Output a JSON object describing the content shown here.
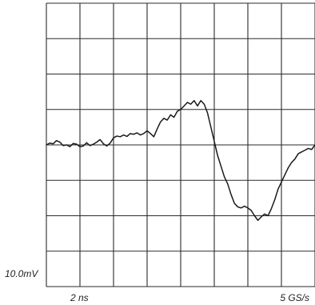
{
  "chart_data": {
    "type": "line",
    "title": "",
    "xlabel": "",
    "ylabel": "",
    "grid": true,
    "grid_divisions": {
      "x": 8,
      "y": 8
    },
    "volts_per_div_label": "10.0mV",
    "time_per_div_label": "2 ns",
    "sample_rate_label": "5 GS/s",
    "x_unit": "ns",
    "y_unit": "mV",
    "xlim": [
      0,
      16
    ],
    "ylim": [
      -40,
      40
    ],
    "series": [
      {
        "x": [
          0,
          0.2,
          0.4,
          0.6,
          0.8,
          1.0,
          1.2,
          1.4,
          1.6,
          1.8,
          2.0,
          2.2,
          2.4,
          2.6,
          2.8,
          3.0,
          3.2,
          3.4,
          3.6,
          3.8,
          4.0,
          4.2,
          4.4,
          4.6,
          4.8,
          5.0,
          5.2,
          5.4,
          5.6,
          5.8,
          6.0,
          6.2,
          6.4,
          6.6,
          6.8,
          7.0,
          7.2,
          7.4,
          7.6,
          7.8,
          8.0,
          8.2,
          8.4,
          8.6,
          8.8,
          9.0,
          9.2,
          9.4,
          9.6,
          9.8,
          10.0,
          10.2,
          10.4,
          10.6,
          10.8,
          11.0,
          11.2,
          11.4,
          11.6,
          11.8,
          12.0,
          12.2,
          12.4,
          12.6,
          12.8,
          13.0,
          13.2,
          13.4,
          13.6,
          13.8,
          14.0,
          14.2,
          14.4,
          14.6,
          14.8,
          15.0,
          15.2,
          15.4,
          15.6,
          15.8,
          16.0
        ],
        "y": [
          0,
          0.5,
          0.3,
          1.2,
          0.8,
          -0.2,
          0,
          -0.5,
          0.4,
          0.2,
          -0.5,
          -0.3,
          0.6,
          -0.2,
          0.2,
          0.8,
          1.5,
          0.3,
          -0.3,
          0.5,
          2,
          2.5,
          2.3,
          2.8,
          2.4,
          3.2,
          3,
          3.4,
          2.8,
          3.2,
          4,
          3.2,
          2.3,
          4.5,
          6.5,
          7.5,
          7,
          8.5,
          7.8,
          9.5,
          10,
          11,
          12,
          11.5,
          12.5,
          11,
          12.5,
          11.5,
          9,
          5,
          1,
          -3,
          -6,
          -9,
          -11,
          -14,
          -16.5,
          -17.5,
          -17.8,
          -17.3,
          -17.8,
          -18.5,
          -20,
          -21.3,
          -20.3,
          -19.5,
          -20,
          -18,
          -15.5,
          -12.5,
          -10.5,
          -8.5,
          -6.5,
          -5,
          -4,
          -2.5,
          -2,
          -1.5,
          -1,
          -1.3,
          0
        ]
      }
    ]
  }
}
